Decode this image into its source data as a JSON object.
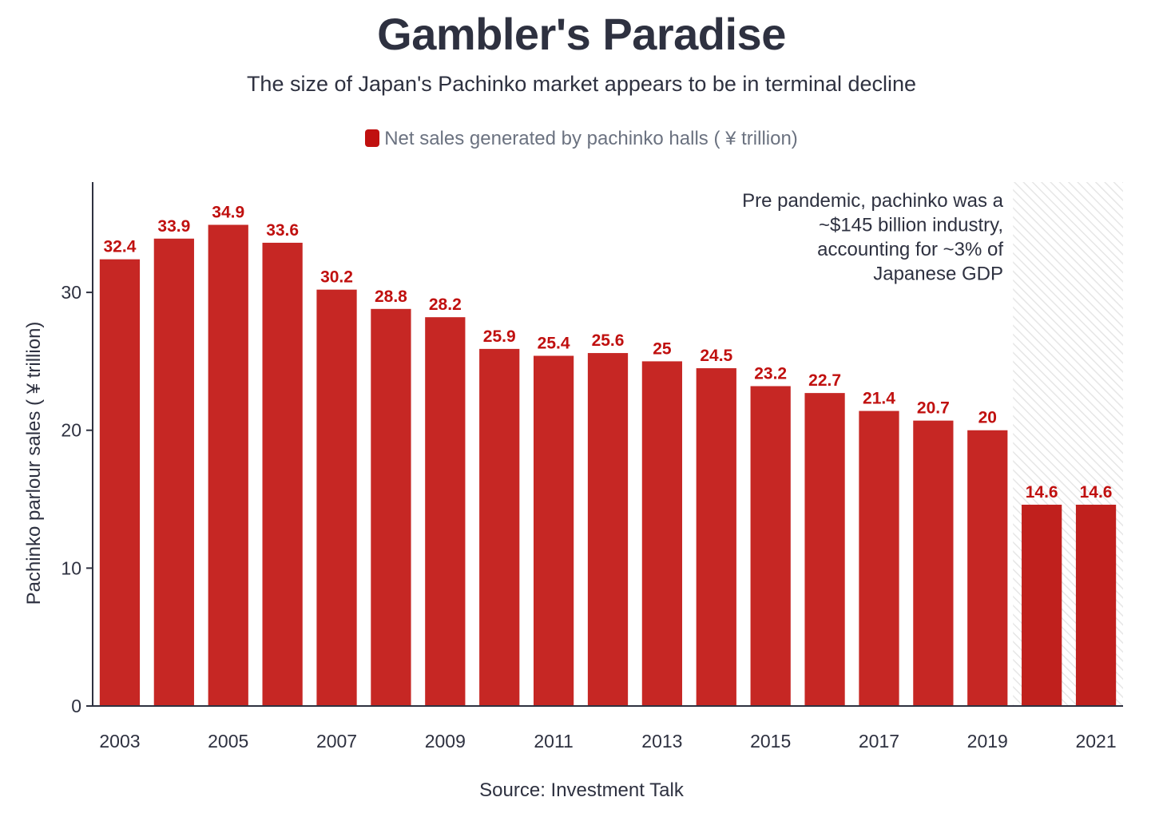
{
  "chart_data": {
    "type": "bar",
    "title": "Gambler's Paradise",
    "subtitle": "The size of Japan's Pachinko market appears to be in terminal decline",
    "series_name": "Net sales generated by pachinko halls ( ¥ trillion)",
    "ylabel": "Pachinko parlour sales ( ¥ trillion)",
    "xlabel": "",
    "categories": [
      "2003",
      "2004",
      "2005",
      "2006",
      "2007",
      "2008",
      "2009",
      "2010",
      "2011",
      "2012",
      "2013",
      "2014",
      "2015",
      "2016",
      "2017",
      "2018",
      "2019",
      "2020",
      "2021"
    ],
    "values": [
      32.4,
      33.9,
      34.9,
      33.6,
      30.2,
      28.8,
      28.2,
      25.9,
      25.4,
      25.6,
      25,
      24.5,
      23.2,
      22.7,
      21.4,
      20.7,
      20,
      14.6,
      14.6
    ],
    "x_tick_labels": [
      "2003",
      "2005",
      "2007",
      "2009",
      "2011",
      "2013",
      "2015",
      "2017",
      "2019",
      "2021"
    ],
    "y_ticks": [
      0,
      10,
      20,
      30
    ],
    "ylim": [
      0,
      38
    ],
    "grid": false,
    "legend_position": "top-center",
    "highlighted_region": [
      "2020",
      "2021"
    ],
    "annotation": [
      "Pre pandemic, pachinko was a",
      "~$145 billion industry,",
      "accounting for ~3% of",
      "Japanese GDP"
    ],
    "source": "Source: Investment Talk",
    "colors": {
      "bar": "#c62724",
      "bar_highlight": "#c0201d",
      "label": "#c0100f",
      "axis": "#2e3140"
    }
  }
}
